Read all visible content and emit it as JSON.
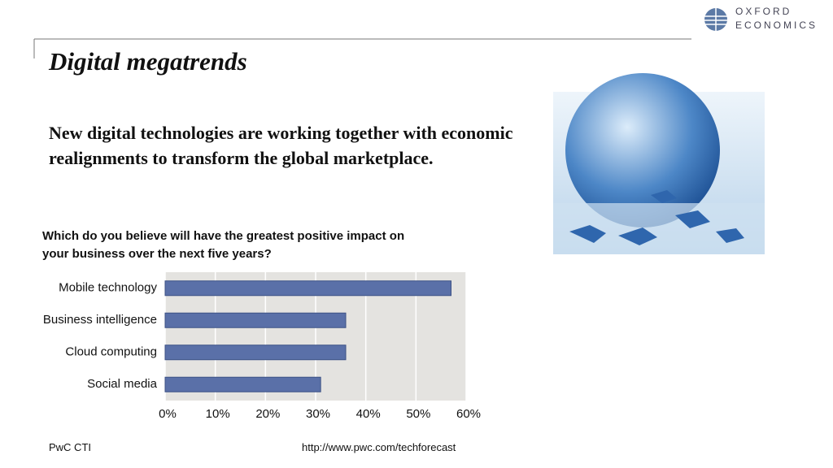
{
  "slide": {
    "logo_lines": [
      "OXFORD",
      "ECONOMICS"
    ],
    "title": "Digital megatrends",
    "subtitle": "New digital technologies are working together with economic realignments to transform the global marketplace.",
    "footer_left": "PwC CTI",
    "footer_url": "http://www.pwc.com/techforecast"
  },
  "chart_data": {
    "type": "hbar",
    "title": "Which do you believe will have the greatest positive impact on your business over the next five years?",
    "categories": [
      "Mobile technology",
      "Business intelligence",
      "Cloud computing",
      "Social media"
    ],
    "values": [
      57,
      36,
      36,
      31
    ],
    "color": "#5a70a8",
    "xlim": [
      0,
      60
    ],
    "xticks": [
      {
        "value": 0,
        "label": "0%"
      },
      {
        "value": 10,
        "label": "10%"
      },
      {
        "value": 20,
        "label": "20%"
      },
      {
        "value": 30,
        "label": "30%"
      },
      {
        "value": 40,
        "label": "40%"
      },
      {
        "value": 50,
        "label": "50%"
      },
      {
        "value": 60,
        "label": "60%"
      }
    ],
    "grid": true
  }
}
